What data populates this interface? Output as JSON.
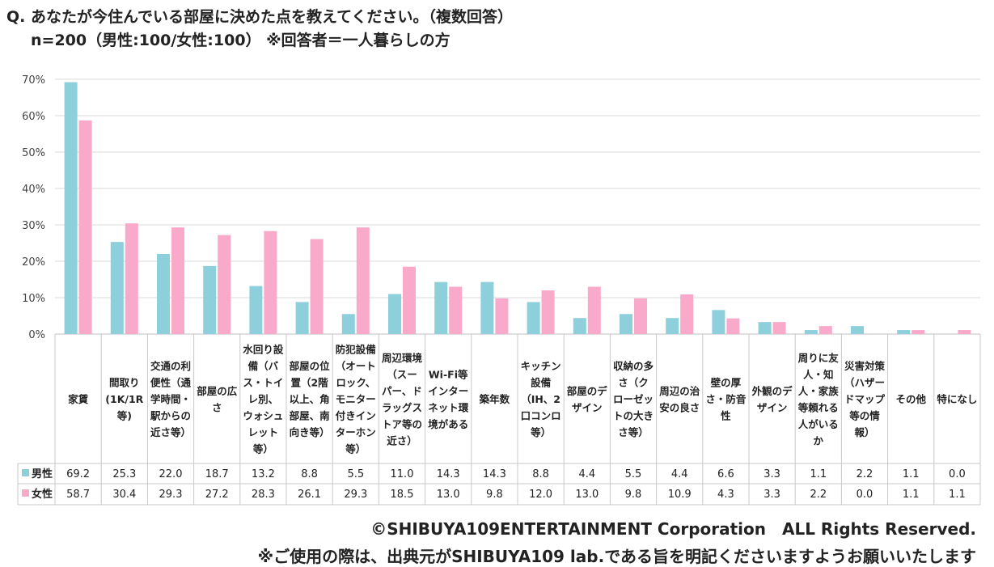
{
  "header": {
    "question": "Q. あなたが今住んでいる部屋に決めた点を教えてください。（複数回答）",
    "sample": "n=200（男性:100/女性:100）  ※回答者＝一人暮らしの方"
  },
  "colors": {
    "male": "#8ecfdc",
    "female": "#f9aacb",
    "grid": "#d9d9d9",
    "axis": "#bfbfbf"
  },
  "chart_data": {
    "type": "bar",
    "ylim": [
      0,
      70
    ],
    "y_ticks": [
      "0%",
      "10%",
      "20%",
      "30%",
      "40%",
      "50%",
      "60%",
      "70%"
    ],
    "grid": true,
    "legend_placement": "table-left",
    "categories": [
      [
        "家賃"
      ],
      [
        "間取り",
        "(1K/1R",
        "等)"
      ],
      [
        "交通の利",
        "便性（通",
        "学時間・",
        "駅からの",
        "近さ等）"
      ],
      [
        "部屋の広",
        "さ"
      ],
      [
        "水回り設",
        "備（バ",
        "ス・トイ",
        "レ別、",
        "ウォシュ",
        "レット",
        "等）"
      ],
      [
        "部屋の位",
        "置（2階",
        "以上、角",
        "部屋、南",
        "向き等）"
      ],
      [
        "防犯設備",
        "（オート",
        "ロック、",
        "モニター",
        "付きイン",
        "ターホン",
        "等）"
      ],
      [
        "周辺環境",
        "（スー",
        "パー、ド",
        "ラッグス",
        "トア等の",
        "近さ）"
      ],
      [
        "Wi-Fi等",
        "インター",
        "ネット環",
        "境がある"
      ],
      [
        "築年数"
      ],
      [
        "キッチン",
        "設備",
        "（IH、2",
        "口コンロ",
        "等）"
      ],
      [
        "部屋のデ",
        "ザイン"
      ],
      [
        "収納の多",
        "さ（ク",
        "ローゼッ",
        "トの大き",
        "さ等）"
      ],
      [
        "周辺の治",
        "安の良さ"
      ],
      [
        "壁の厚",
        "さ・防音",
        "性"
      ],
      [
        "外観のデ",
        "ザイン"
      ],
      [
        "周りに友",
        "人・知",
        "人・家族",
        "等頼れる",
        "人がいる",
        "か"
      ],
      [
        "災害対策",
        "（ハザー",
        "ドマップ",
        "等の情",
        "報）"
      ],
      [
        "その他"
      ],
      [
        "特になし"
      ]
    ],
    "series": [
      {
        "name": "男性",
        "values": [
          69.2,
          25.3,
          22.0,
          18.7,
          13.2,
          8.8,
          5.5,
          11.0,
          14.3,
          14.3,
          8.8,
          4.4,
          5.5,
          4.4,
          6.6,
          3.3,
          1.1,
          2.2,
          1.1,
          0.0
        ],
        "labels": [
          "69.2",
          "25.3",
          "22.0",
          "18.7",
          "13.2",
          "8.8",
          "5.5",
          "11.0",
          "14.3",
          "14.3",
          "8.8",
          "4.4",
          "5.5",
          "4.4",
          "6.6",
          "3.3",
          "1.1",
          "2.2",
          "1.1",
          "0.0"
        ]
      },
      {
        "name": "女性",
        "values": [
          58.7,
          30.4,
          29.3,
          27.2,
          28.3,
          26.1,
          29.3,
          18.5,
          13.0,
          9.8,
          12.0,
          13.0,
          9.8,
          10.9,
          4.3,
          3.3,
          2.2,
          0.0,
          1.1,
          1.1
        ],
        "labels": [
          "58.7",
          "30.4",
          "29.3",
          "27.2",
          "28.3",
          "26.1",
          "29.3",
          "18.5",
          "13.0",
          "9.8",
          "12.0",
          "13.0",
          "9.8",
          "10.9",
          "4.3",
          "3.3",
          "2.2",
          "0.0",
          "1.1",
          "1.1"
        ]
      }
    ]
  },
  "footer": {
    "copyright": "©SHIBUYA109ENTERTAINMENT Corporation　ALL Rights Reserved.",
    "notice": "※ご使用の際は、出典元がSHIBUYA109 lab.である旨を明記くださいますようお願いいたします"
  }
}
